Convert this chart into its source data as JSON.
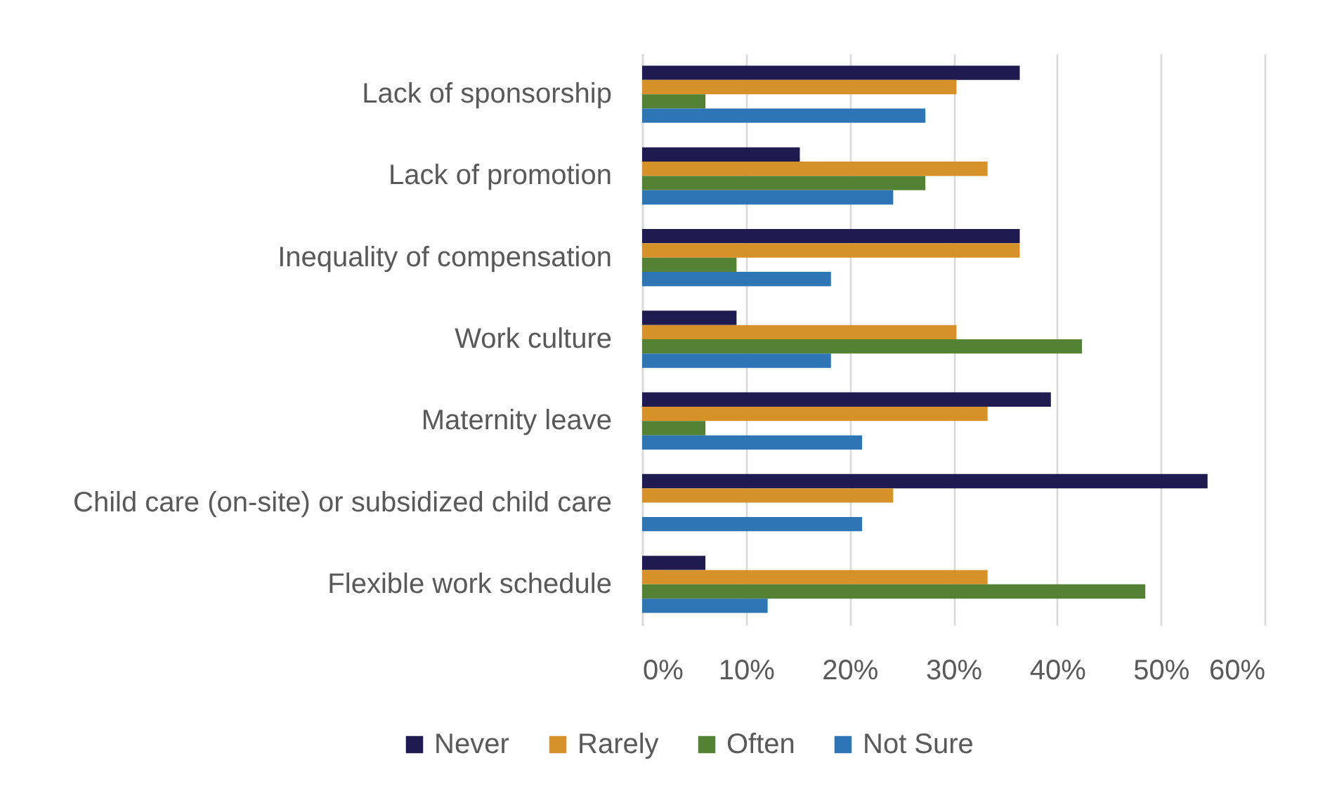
{
  "chart_data": {
    "type": "bar",
    "orientation": "horizontal",
    "categories": [
      "Lack of sponsorship",
      "Lack of promotion",
      "Inequality of compensation",
      "Work culture",
      "Maternity leave",
      "Child care (on-site) or subsidized child care",
      "Flexible work schedule"
    ],
    "series": [
      {
        "name": "Never",
        "color": "#1f1a4f",
        "values": [
          36.4,
          15.2,
          36.4,
          9.1,
          39.4,
          54.5,
          6.1
        ]
      },
      {
        "name": "Rarely",
        "color": "#d69229",
        "values": [
          30.3,
          33.3,
          36.4,
          30.3,
          33.3,
          24.2,
          33.3
        ]
      },
      {
        "name": "Often",
        "color": "#548235",
        "values": [
          6.1,
          27.3,
          9.1,
          42.4,
          6.1,
          null,
          48.5
        ]
      },
      {
        "name": "Not Sure",
        "color": "#2e75b6",
        "values": [
          27.3,
          24.2,
          18.2,
          18.2,
          21.2,
          21.2,
          12.1
        ]
      }
    ],
    "xlim": [
      0,
      60
    ],
    "xticks": [
      {
        "value": 0,
        "label": "0%"
      },
      {
        "value": 10,
        "label": "10%"
      },
      {
        "value": 20,
        "label": "20%"
      },
      {
        "value": 30,
        "label": "30%"
      },
      {
        "value": 40,
        "label": "40%"
      },
      {
        "value": 50,
        "label": "50%"
      },
      {
        "value": 60,
        "label": "60%"
      }
    ],
    "grid": "x",
    "legend": "bottom"
  }
}
